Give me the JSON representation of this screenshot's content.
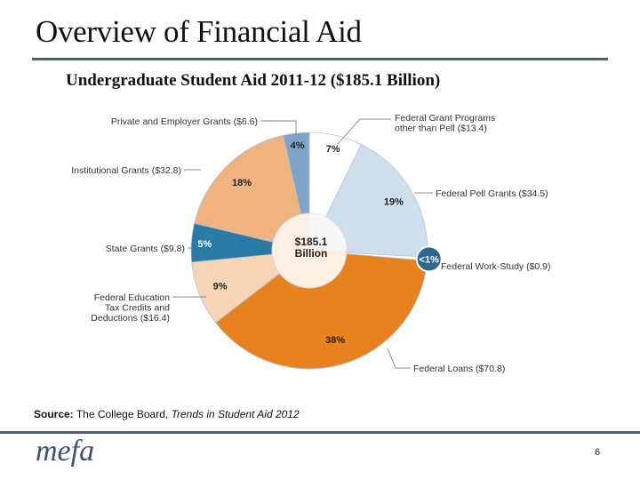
{
  "title": "Overview of Financial Aid",
  "chart_title": "Undergraduate Student Aid 2011-12 ($185.1 Billion)",
  "source": {
    "label": "Source:",
    "text": "The College Board,",
    "publication": "Trends in Student Aid 2012"
  },
  "logo": "mefa",
  "page_number": "6",
  "chart_data": {
    "type": "pie",
    "center_label": [
      "$185.1",
      "Billion"
    ],
    "slices": [
      {
        "label": "Federal Grant Programs other than Pell ($13.4)",
        "label_lines": [
          "Federal Grant Programs",
          "other than Pell ($13.4)"
        ],
        "value": 13.4,
        "pct_label": "7%",
        "color": "#ffffff"
      },
      {
        "label": "Federal Pell Grants ($34.5)",
        "label_lines": [
          "Federal Pell Grants ($34.5)"
        ],
        "value": 34.5,
        "pct_label": "19%",
        "color": "#cfdeed"
      },
      {
        "label": "Federal Work-Study ($0.9)",
        "label_lines": [
          "Federal Work-Study ($0.9)"
        ],
        "value": 0.9,
        "pct_label": "<1%",
        "color": "#2e6891"
      },
      {
        "label": "Federal Loans ($70.8)",
        "label_lines": [
          "Federal Loans ($70.8)"
        ],
        "value": 70.8,
        "pct_label": "38%",
        "color": "#e8821e"
      },
      {
        "label": "Federal Education Tax Credits and Deductions ($16.4)",
        "label_lines": [
          "Federal Education",
          "Tax Credits and",
          "Deductions ($16.4)"
        ],
        "value": 16.4,
        "pct_label": "9%",
        "color": "#f7d4b3"
      },
      {
        "label": "State Grants ($9.8)",
        "label_lines": [
          "State Grants ($9.8)"
        ],
        "value": 9.8,
        "pct_label": "5%",
        "color": "#2a7aa6"
      },
      {
        "label": "Institutional Grants ($32.8)",
        "label_lines": [
          "Institutional Grants ($32.8)"
        ],
        "value": 32.8,
        "pct_label": "18%",
        "color": "#f0b27f"
      },
      {
        "label": "Private and Employer Grants ($6.6)",
        "label_lines": [
          "Private and Employer Grants ($6.6)"
        ],
        "value": 6.6,
        "pct_label": "4%",
        "color": "#7ea5c9"
      }
    ]
  }
}
